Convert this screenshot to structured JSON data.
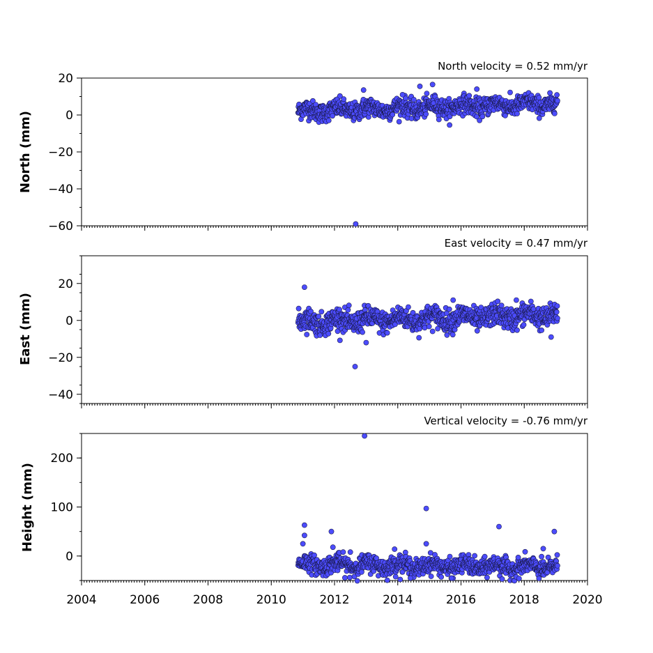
{
  "chart_data": [
    {
      "type": "scatter",
      "title": "North velocity = 0.52 mm/yr",
      "xlabel": "",
      "ylabel": "North (mm)",
      "xlim": [
        2004,
        2020
      ],
      "ylim": [
        -60,
        20
      ],
      "yticks": [
        20,
        0,
        -20,
        -40,
        -60
      ],
      "xticks": [
        2004,
        2006,
        2008,
        2010,
        2012,
        2014,
        2016,
        2018,
        2020
      ],
      "show_xtick_labels": false,
      "grid": false,
      "marker_color": "#4c4cff",
      "series_start": 2010.85,
      "series_end": 2019.05,
      "trend_start_value": 2,
      "velocity": 0.52,
      "scatter_amplitude": 2.5,
      "outliers": [
        {
          "x": 2012.67,
          "y": -59
        },
        {
          "x": 2012.92,
          "y": 13.5
        },
        {
          "x": 2014.7,
          "y": 15.5
        },
        {
          "x": 2015.1,
          "y": 16.5
        },
        {
          "x": 2016.5,
          "y": 14
        },
        {
          "x": 2014.15,
          "y": 11
        }
      ]
    },
    {
      "type": "scatter",
      "title": "East velocity = 0.47 mm/yr",
      "xlabel": "",
      "ylabel": "East (mm)",
      "xlim": [
        2004,
        2020
      ],
      "ylim": [
        -45,
        35
      ],
      "yticks": [
        20,
        0,
        -20,
        -40
      ],
      "xticks": [
        2004,
        2006,
        2008,
        2010,
        2012,
        2014,
        2016,
        2018,
        2020
      ],
      "show_xtick_labels": false,
      "grid": false,
      "marker_color": "#4c4cff",
      "series_start": 2010.85,
      "series_end": 2019.05,
      "trend_start_value": -1,
      "velocity": 0.47,
      "scatter_amplitude": 3,
      "outliers": [
        {
          "x": 2011.05,
          "y": 18
        },
        {
          "x": 2012.65,
          "y": -25
        },
        {
          "x": 2013.0,
          "y": -12
        },
        {
          "x": 2015.75,
          "y": 11
        },
        {
          "x": 2017.75,
          "y": 11
        },
        {
          "x": 2018.85,
          "y": -9
        }
      ]
    },
    {
      "type": "scatter",
      "title": "Vertical velocity = -0.76 mm/yr",
      "xlabel": "",
      "ylabel": "Height (mm)",
      "xlim": [
        2004,
        2020
      ],
      "ylim": [
        -50,
        250
      ],
      "yticks": [
        200,
        100,
        0
      ],
      "xticks": [
        2004,
        2006,
        2008,
        2010,
        2012,
        2014,
        2016,
        2018,
        2020
      ],
      "show_xtick_labels": true,
      "grid": false,
      "marker_color": "#4c4cff",
      "series_start": 2010.85,
      "series_end": 2019.05,
      "trend_start_value": -17,
      "velocity": -0.76,
      "scatter_amplitude": 9,
      "outliers": [
        {
          "x": 2012.95,
          "y": 245
        },
        {
          "x": 2014.9,
          "y": 97
        },
        {
          "x": 2017.2,
          "y": 60
        },
        {
          "x": 2011.05,
          "y": 63
        },
        {
          "x": 2011.05,
          "y": 42
        },
        {
          "x": 2011.9,
          "y": 50
        },
        {
          "x": 2011.0,
          "y": 25
        },
        {
          "x": 2014.9,
          "y": 25
        },
        {
          "x": 2018.95,
          "y": 50
        },
        {
          "x": 2012.5,
          "y": 8
        },
        {
          "x": 2011.95,
          "y": 18
        },
        {
          "x": 2013.9,
          "y": 14
        },
        {
          "x": 2018.6,
          "y": 15
        },
        {
          "x": 2017.3,
          "y": -47
        },
        {
          "x": 2015.7,
          "y": -45
        },
        {
          "x": 2014.4,
          "y": -45
        }
      ]
    }
  ]
}
